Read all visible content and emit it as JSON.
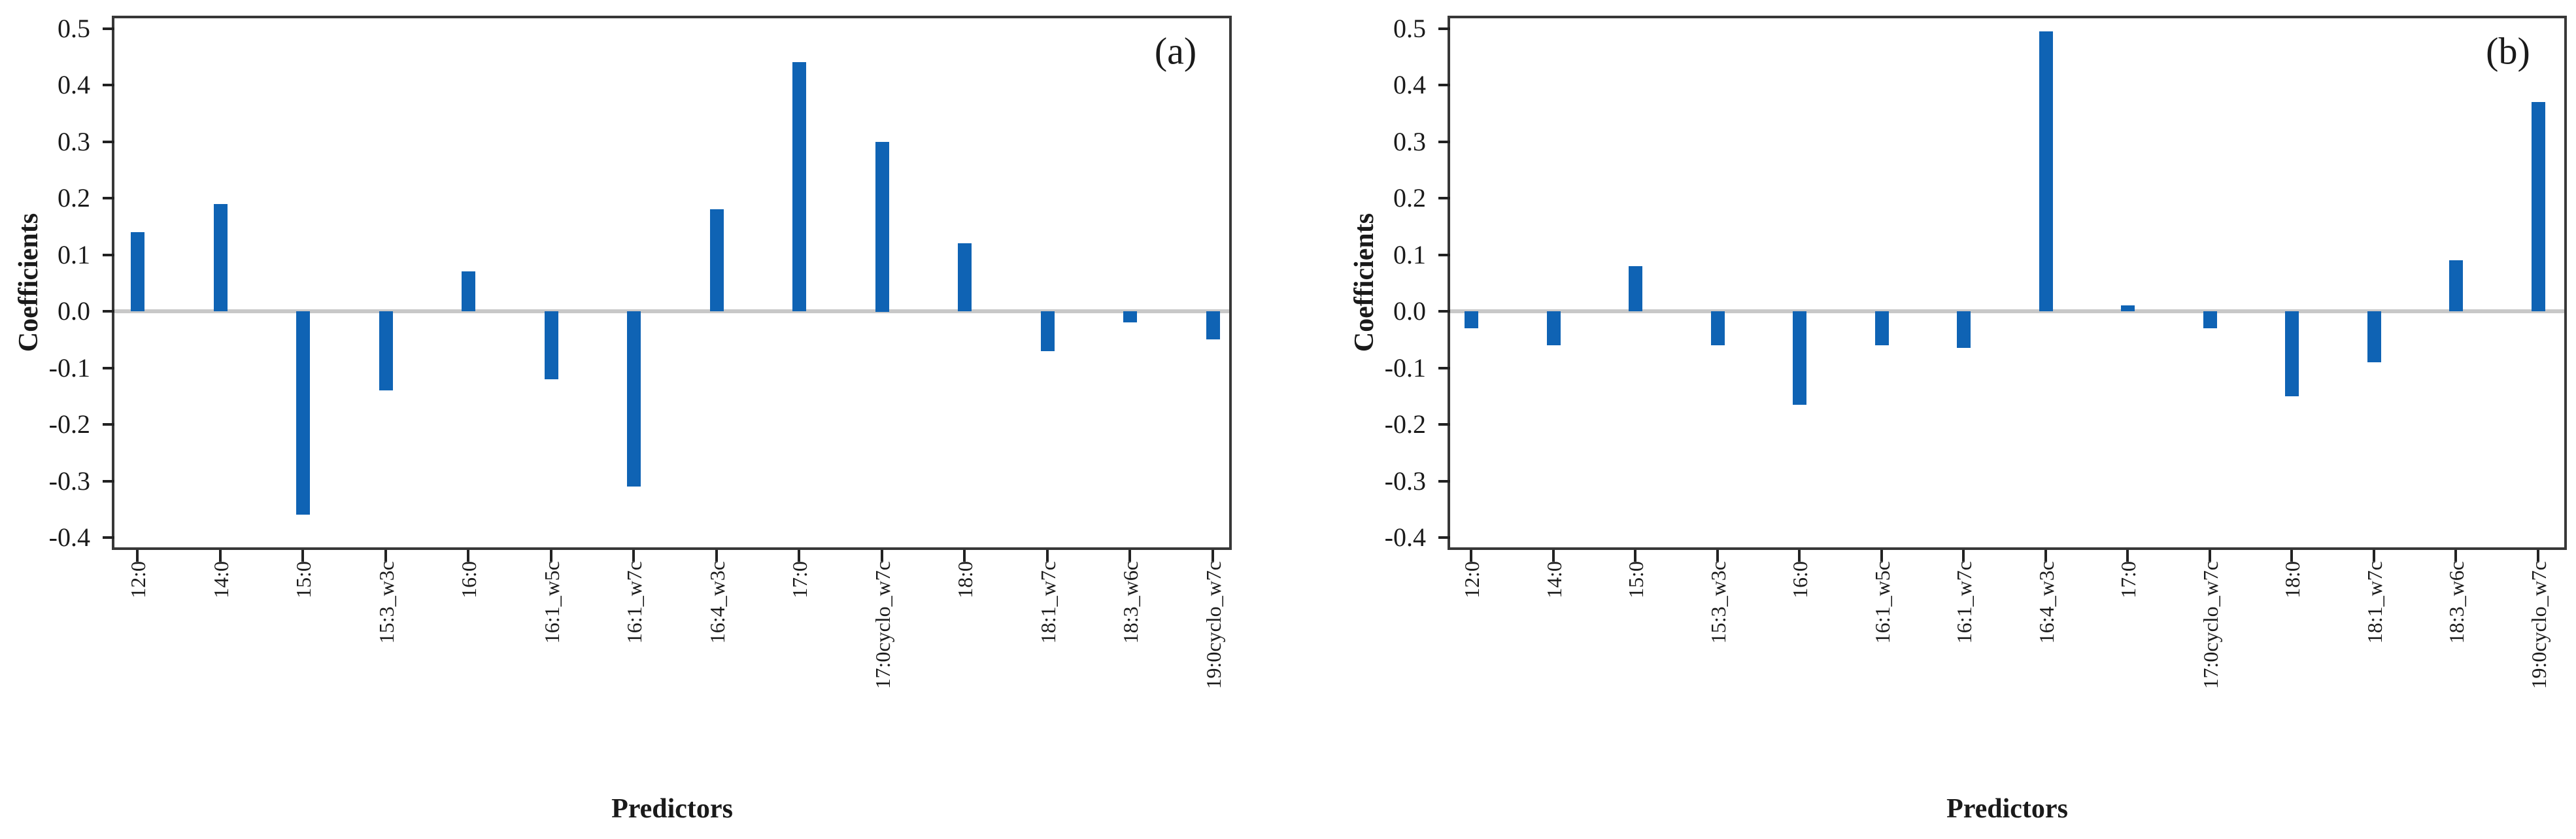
{
  "figure": {
    "background": "#ffffff",
    "bar_color": "#0f63b4",
    "spine_color": "#383838",
    "zero_line_color": "#c8c8c8",
    "text_color": "#1a1a1a"
  },
  "chart_data": [
    {
      "type": "bar",
      "panel_label": "(a)",
      "xlabel": "Predictors",
      "ylabel": "Coefficients",
      "ylim": [
        -0.42,
        0.52
      ],
      "yticks": [
        0.5,
        0.4,
        0.3,
        0.2,
        0.1,
        0.0,
        -0.1,
        -0.2,
        -0.3,
        -0.4
      ],
      "ytick_labels": [
        "0.5",
        "0.4",
        "0.3",
        "0.2",
        "0.1",
        "0.0",
        "-0.1",
        "-0.2",
        "-0.3",
        "-0.4"
      ],
      "grid": "zero-line-only",
      "legend": "none",
      "categories": [
        "12:0",
        "14:0",
        "15:0",
        "15:3_w3c",
        "16:0",
        "16:1_w5c",
        "16:1_w7c",
        "16:4_w3c",
        "17:0",
        "17:0cyclo_w7c",
        "18:0",
        "18:1_w7c",
        "18:3_w6c",
        "19:0cyclo_w7c"
      ],
      "values": [
        0.14,
        0.19,
        -0.36,
        -0.14,
        0.07,
        -0.12,
        -0.31,
        0.18,
        0.44,
        0.3,
        0.12,
        -0.07,
        -0.02,
        -0.05
      ]
    },
    {
      "type": "bar",
      "panel_label": "(b)",
      "xlabel": "Predictors",
      "ylabel": "Coefficients",
      "ylim": [
        -0.42,
        0.52
      ],
      "yticks": [
        0.5,
        0.4,
        0.3,
        0.2,
        0.1,
        0.0,
        -0.1,
        -0.2,
        -0.3,
        -0.4
      ],
      "ytick_labels": [
        "0.5",
        "0.4",
        "0.3",
        "0.2",
        "0.1",
        "0.0",
        "-0.1",
        "-0.2",
        "-0.3",
        "-0.4"
      ],
      "grid": "zero-line-only",
      "legend": "none",
      "categories": [
        "12:0",
        "14:0",
        "15:0",
        "15:3_w3c",
        "16:0",
        "16:1_w5c",
        "16:1_w7c",
        "16:4_w3c",
        "17:0",
        "17:0cyclo_w7c",
        "18:0",
        "18:1_w7c",
        "18:3_w6c",
        "19:0cyclo_w7c"
      ],
      "values": [
        -0.03,
        -0.06,
        0.08,
        -0.06,
        -0.165,
        -0.06,
        -0.065,
        0.495,
        0.01,
        -0.03,
        -0.15,
        -0.09,
        0.09,
        0.37
      ]
    }
  ]
}
